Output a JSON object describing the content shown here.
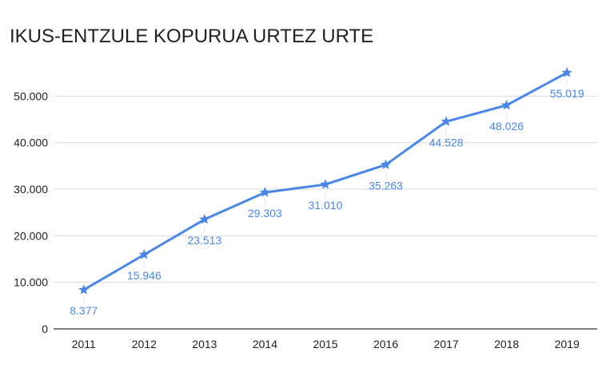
{
  "chart_data": {
    "type": "line",
    "title": "IKUS-ENTZULE KOPURUA URTEZ URTE",
    "categories": [
      "2011",
      "2012",
      "2013",
      "2014",
      "2015",
      "2016",
      "2017",
      "2018",
      "2019"
    ],
    "series": [
      {
        "values": [
          8377,
          15946,
          23513,
          29303,
          31010,
          35263,
          44528,
          48026,
          55019
        ],
        "labels": [
          "8.377",
          "15.946",
          "23.513",
          "29.303",
          "31.010",
          "35.263",
          "44.528",
          "48.026",
          "55.019"
        ],
        "marker": "star",
        "color": "#4a86e8"
      }
    ],
    "ylim": [
      0,
      60000
    ],
    "yticks": [
      0,
      10000,
      20000,
      30000,
      40000,
      50000
    ],
    "ytick_labels": [
      "0",
      "10.000",
      "20.000",
      "30.000",
      "40.000",
      "50.000"
    ],
    "grid": true,
    "legend": "none",
    "colors": {
      "line": "#4a86e8",
      "grid": "#d9d9d9",
      "axis": "#333333"
    }
  }
}
